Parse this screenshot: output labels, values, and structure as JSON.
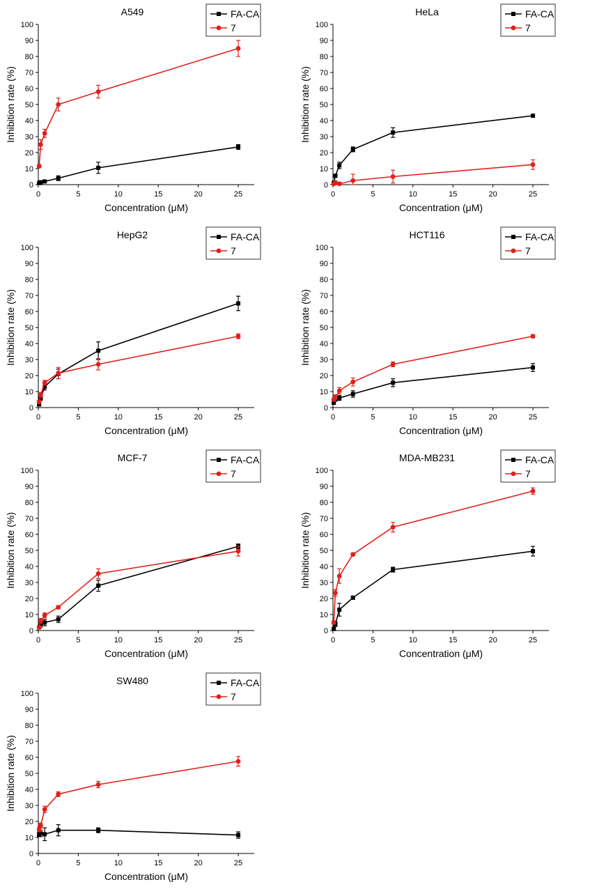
{
  "colors": {
    "fa_ca": "#000000",
    "compound7": "#e0201b"
  },
  "chart_data": [
    {
      "type": "line",
      "title": "A549",
      "xlabel": "Concentration (μM)",
      "ylabel": "Inhibition rate (%)",
      "xlim": [
        0,
        27
      ],
      "ylim": [
        0,
        100
      ],
      "xticks": [
        0,
        5,
        10,
        15,
        20,
        25
      ],
      "yticks": [
        0,
        10,
        20,
        30,
        40,
        50,
        60,
        70,
        80,
        90,
        100
      ],
      "series": [
        {
          "name": "FA-CA",
          "color": "#000000",
          "x": [
            0.1,
            0.3,
            0.8,
            2.5,
            7.5,
            25
          ],
          "y": [
            1,
            1.5,
            2,
            4,
            10.5,
            23.5
          ],
          "err": [
            0.5,
            0.5,
            0.5,
            1.5,
            3.5,
            1.5
          ]
        },
        {
          "name": "7",
          "color": "#e0201b",
          "x": [
            0.1,
            0.3,
            0.8,
            2.5,
            7.5,
            25
          ],
          "y": [
            11.5,
            25,
            32,
            50,
            58,
            85
          ],
          "err": [
            1,
            3,
            2.5,
            4,
            4,
            5
          ]
        }
      ]
    },
    {
      "type": "line",
      "title": "HeLa",
      "xlabel": "Concentration (μM)",
      "ylabel": "Inhibition rate (%)",
      "xlim": [
        0,
        27
      ],
      "ylim": [
        0,
        100
      ],
      "xticks": [
        0,
        5,
        10,
        15,
        20,
        25
      ],
      "yticks": [
        0,
        10,
        20,
        30,
        40,
        50,
        60,
        70,
        80,
        90,
        100
      ],
      "series": [
        {
          "name": "FA-CA",
          "color": "#000000",
          "x": [
            0.1,
            0.3,
            0.8,
            2.5,
            7.5,
            25
          ],
          "y": [
            1,
            5.5,
            12,
            22,
            32.5,
            43
          ],
          "err": [
            0.5,
            1,
            2,
            1.5,
            3,
            1
          ]
        },
        {
          "name": "7",
          "color": "#e0201b",
          "x": [
            0.1,
            0.3,
            0.8,
            2.5,
            7.5,
            25
          ],
          "y": [
            0.5,
            1,
            0.5,
            2.5,
            5,
            12.5
          ],
          "err": [
            0.5,
            1.5,
            1,
            4,
            4,
            3
          ]
        }
      ]
    },
    {
      "type": "line",
      "title": "HepG2",
      "xlabel": "Concentration (μM)",
      "ylabel": "Inhibition rate (%)",
      "xlim": [
        0,
        27
      ],
      "ylim": [
        0,
        100
      ],
      "xticks": [
        0,
        5,
        10,
        15,
        20,
        25
      ],
      "yticks": [
        0,
        10,
        20,
        30,
        40,
        50,
        60,
        70,
        80,
        90,
        100
      ],
      "series": [
        {
          "name": "FA-CA",
          "color": "#000000",
          "x": [
            0.1,
            0.3,
            0.8,
            2.5,
            7.5,
            25
          ],
          "y": [
            2,
            6,
            13,
            21,
            35.5,
            65
          ],
          "err": [
            1,
            1.5,
            2,
            3,
            5.5,
            4.5
          ]
        },
        {
          "name": "7",
          "color": "#e0201b",
          "x": [
            0.1,
            0.3,
            0.8,
            2.5,
            7.5,
            25
          ],
          "y": [
            3.5,
            8,
            15.5,
            21.5,
            27,
            44.5
          ],
          "err": [
            1,
            1.5,
            1.5,
            3.5,
            3.5,
            1.5
          ]
        }
      ]
    },
    {
      "type": "line",
      "title": "HCT116",
      "xlabel": "Concentration (μM)",
      "ylabel": "Inhibition rate (%)",
      "xlim": [
        0,
        27
      ],
      "ylim": [
        0,
        100
      ],
      "xticks": [
        0,
        5,
        10,
        15,
        20,
        25
      ],
      "yticks": [
        0,
        10,
        20,
        30,
        40,
        50,
        60,
        70,
        80,
        90,
        100
      ],
      "series": [
        {
          "name": "FA-CA",
          "color": "#000000",
          "x": [
            0.1,
            0.3,
            0.8,
            2.5,
            7.5,
            25
          ],
          "y": [
            3,
            5,
            6,
            8.5,
            15.5,
            25
          ],
          "err": [
            1,
            1,
            1.5,
            2,
            2.5,
            2.5
          ]
        },
        {
          "name": "7",
          "color": "#e0201b",
          "x": [
            0.1,
            0.3,
            0.8,
            2.5,
            7.5,
            25
          ],
          "y": [
            5,
            6.5,
            10.5,
            16,
            27,
            44.5
          ],
          "err": [
            1,
            1.5,
            2,
            2.5,
            1.5,
            1
          ]
        }
      ]
    },
    {
      "type": "line",
      "title": "MCF-7",
      "xlabel": "Concentration (μM)",
      "ylabel": "Inhibition rate (%)",
      "xlim": [
        0,
        27
      ],
      "ylim": [
        0,
        100
      ],
      "xticks": [
        0,
        5,
        10,
        15,
        20,
        25
      ],
      "yticks": [
        0,
        10,
        20,
        30,
        40,
        50,
        60,
        70,
        80,
        90,
        100
      ],
      "series": [
        {
          "name": "FA-CA",
          "color": "#000000",
          "x": [
            0.1,
            0.3,
            0.8,
            2.5,
            7.5,
            25
          ],
          "y": [
            2,
            4,
            5,
            7,
            28,
            52.5
          ],
          "err": [
            1,
            2,
            2,
            2,
            3.5,
            1.5
          ]
        },
        {
          "name": "7",
          "color": "#e0201b",
          "x": [
            0.1,
            0.3,
            0.8,
            2.5,
            7.5,
            25
          ],
          "y": [
            2,
            6,
            9.5,
            14.5,
            35.5,
            49.5
          ],
          "err": [
            1,
            1.5,
            1.5,
            1,
            3,
            3
          ]
        }
      ]
    },
    {
      "type": "line",
      "title": "MDA-MB231",
      "xlabel": "Concentration (μM)",
      "ylabel": "Inhibition rate (%)",
      "xlim": [
        0,
        27
      ],
      "ylim": [
        0,
        100
      ],
      "xticks": [
        0,
        5,
        10,
        15,
        20,
        25
      ],
      "yticks": [
        0,
        10,
        20,
        30,
        40,
        50,
        60,
        70,
        80,
        90,
        100
      ],
      "series": [
        {
          "name": "FA-CA",
          "color": "#000000",
          "x": [
            0.1,
            0.3,
            0.8,
            2.5,
            7.5,
            25
          ],
          "y": [
            1,
            4,
            13,
            20.5,
            38,
            49.5
          ],
          "err": [
            0.5,
            1.5,
            4,
            1,
            1.5,
            3
          ]
        },
        {
          "name": "7",
          "color": "#e0201b",
          "x": [
            0.1,
            0.3,
            0.8,
            2.5,
            7.5,
            25
          ],
          "y": [
            5,
            23.5,
            34,
            47.5,
            64.5,
            87
          ],
          "err": [
            1,
            2,
            4.5,
            1,
            3,
            2
          ]
        }
      ]
    },
    {
      "type": "line",
      "title": "SW480",
      "xlabel": "Concentration (μM)",
      "ylabel": "Inhibition rate (%)",
      "xlim": [
        0,
        27
      ],
      "ylim": [
        0,
        100
      ],
      "xticks": [
        0,
        5,
        10,
        15,
        20,
        25
      ],
      "yticks": [
        0,
        10,
        20,
        30,
        40,
        50,
        60,
        70,
        80,
        90,
        100
      ],
      "series": [
        {
          "name": "FA-CA",
          "color": "#000000",
          "x": [
            0.1,
            0.3,
            0.8,
            2.5,
            7.5,
            25
          ],
          "y": [
            12,
            12.5,
            12,
            14.5,
            14.5,
            11.5
          ],
          "err": [
            1.5,
            2,
            4,
            3.5,
            1.5,
            2
          ]
        },
        {
          "name": "7",
          "color": "#e0201b",
          "x": [
            0.1,
            0.3,
            0.8,
            2.5,
            7.5,
            25
          ],
          "y": [
            15,
            17.5,
            27.5,
            37,
            43,
            57.5
          ],
          "err": [
            1.5,
            1.5,
            2,
            1.5,
            2,
            3
          ]
        }
      ]
    }
  ]
}
